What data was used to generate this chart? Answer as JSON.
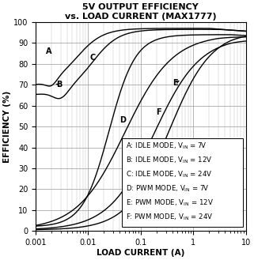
{
  "title_line1": "5V OUTPUT EFFICIENCY",
  "title_line2": "vs. LOAD CURRENT (MAX1777)",
  "xlabel": "LOAD CURRENT (A)",
  "ylabel": "EFFICIENCY (%)",
  "xlim": [
    0.001,
    10
  ],
  "ylim": [
    0,
    100
  ],
  "yticks": [
    0,
    10,
    20,
    30,
    40,
    50,
    60,
    70,
    80,
    90,
    100
  ],
  "xticks": [
    0.001,
    0.01,
    0.1,
    1,
    10
  ],
  "xticklabels": [
    "0.001",
    "0.01",
    "0.1",
    "1",
    "10"
  ],
  "background_color": "#ffffff",
  "line_color": "#000000",
  "title_fontsize": 8.0,
  "label_fontsize": 7.5,
  "tick_fontsize": 7,
  "legend_fontsize": 6.2,
  "legend_entries": [
    "A: IDLE MODE, V_IN = 7V",
    "B: IDLE MODE, V_IN = 12V",
    "C: IDLE MODE, V_IN = 24V",
    "D: PWM MODE, V_IN = 7V",
    "E: PWM MODE, V_IN = 12V",
    "F: PWM MODE, V_IN = 24V"
  ]
}
